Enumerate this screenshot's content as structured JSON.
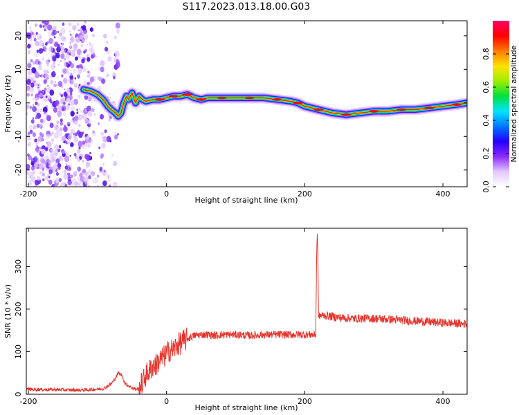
{
  "figure": {
    "title": "S117.2023.013.18.00.G03"
  },
  "chart_data": [
    {
      "type": "heatmap",
      "xlabel": "Height of straight line (km)",
      "ylabel": "Frequency (Hz)",
      "xlim": [
        -203,
        435
      ],
      "ylim": [
        -25,
        24.5
      ],
      "xticks": [
        -200,
        0,
        200,
        400
      ],
      "yticks": [
        -20,
        -10,
        0,
        10,
        20
      ],
      "colorbar": {
        "label": "Normalized spectral amplitude",
        "range": [
          0,
          1
        ],
        "ticks": [
          "0.0",
          "0.2",
          "0.4",
          "0.6",
          "0.8"
        ],
        "colormap": [
          "#ffffff",
          "#e3c8ff",
          "#8b2cff",
          "#2200ff",
          "#0077ff",
          "#00e5ff",
          "#00e040",
          "#9cef00",
          "#ffe100",
          "#ff7a00",
          "#ff0000",
          "#ff0066"
        ]
      },
      "ridge": {
        "x": [
          -120,
          -110,
          -100,
          -92,
          -85,
          -80,
          -74,
          -70,
          -66,
          -62,
          -58,
          -55,
          -50,
          -45,
          -40,
          -35,
          -30,
          -20,
          -10,
          0,
          10,
          20,
          30,
          40,
          50,
          60,
          80,
          100,
          120,
          140,
          160,
          180,
          190,
          200,
          220,
          240,
          260,
          280,
          300,
          320,
          340,
          360,
          380,
          400,
          420,
          435
        ],
        "y": [
          4,
          3.5,
          2.5,
          1,
          -1,
          -2,
          -3,
          -4,
          -3,
          0,
          2,
          1,
          3,
          0,
          2,
          1,
          0.5,
          1,
          1,
          1.5,
          2,
          2,
          2.5,
          1.5,
          1,
          1.5,
          1.5,
          1.5,
          1.5,
          1.5,
          1,
          0.5,
          0,
          -1,
          -2,
          -3,
          -3.5,
          -3,
          -2.5,
          -2.5,
          -2,
          -2,
          -1.5,
          -1,
          -0.5,
          0
        ]
      },
      "noise_region": {
        "x": [
          -203,
          -70
        ]
      }
    },
    {
      "type": "line",
      "xlabel": "Height of straight line (km)",
      "ylabel": "SNR (10 * v/v)",
      "xlim": [
        -203,
        435
      ],
      "ylim": [
        0,
        390
      ],
      "xticks": [
        -200,
        0,
        200,
        400
      ],
      "yticks": [
        0,
        100,
        200,
        300
      ],
      "color": "#e8342c",
      "x": [
        -203,
        -180,
        -160,
        -140,
        -120,
        -100,
        -90,
        -80,
        -75,
        -70,
        -65,
        -60,
        -55,
        -50,
        -45,
        -40,
        -35,
        -30,
        -25,
        -20,
        -15,
        -10,
        -5,
        0,
        5,
        10,
        15,
        20,
        25,
        30,
        40,
        50,
        60,
        70,
        80,
        90,
        100,
        120,
        140,
        160,
        180,
        200,
        210,
        216,
        217,
        218,
        219,
        220,
        222,
        230,
        250,
        270,
        300,
        330,
        360,
        400,
        435
      ],
      "y": [
        12,
        11,
        11,
        10,
        10,
        12,
        14,
        25,
        35,
        50,
        45,
        25,
        20,
        15,
        12,
        12,
        28,
        45,
        55,
        65,
        70,
        80,
        85,
        95,
        105,
        105,
        115,
        120,
        125,
        130,
        138,
        140,
        140,
        138,
        140,
        140,
        140,
        138,
        140,
        140,
        140,
        140,
        140,
        140,
        300,
        385,
        330,
        180,
        185,
        185,
        180,
        178,
        178,
        175,
        172,
        168,
        165
      ]
    }
  ]
}
